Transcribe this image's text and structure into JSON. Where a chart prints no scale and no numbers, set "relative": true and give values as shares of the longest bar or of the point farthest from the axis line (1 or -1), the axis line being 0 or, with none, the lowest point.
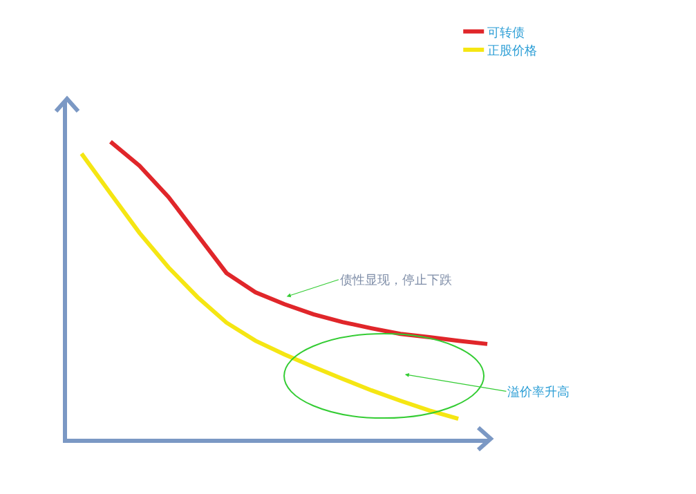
{
  "chart_data": {
    "type": "line",
    "relative": true,
    "legend": "top right",
    "marker": "none",
    "line_style": "solid",
    "categories": [
      null,
      null,
      null,
      null,
      null,
      null,
      null,
      null,
      null,
      null,
      null,
      null,
      null,
      null,
      null
    ],
    "series": [
      {
        "name": "可转债",
        "color": "#e0262a",
        "values": [
          null,
          1.0,
          0.919,
          0.814,
          0.686,
          0.558,
          0.493,
          0.453,
          0.419,
          0.393,
          0.372,
          0.353,
          0.342,
          0.33,
          0.319
        ]
      },
      {
        "name": "正股价格",
        "color": "#f5e613",
        "values": [
          0.96,
          0.826,
          0.693,
          0.577,
          0.477,
          0.391,
          0.33,
          0.284,
          0.242,
          0.202,
          0.163,
          0.128,
          0.095,
          0.067,
          null
        ]
      }
    ],
    "annotations": [
      "债性显现，停止下跌",
      "溢价率升高"
    ]
  }
}
